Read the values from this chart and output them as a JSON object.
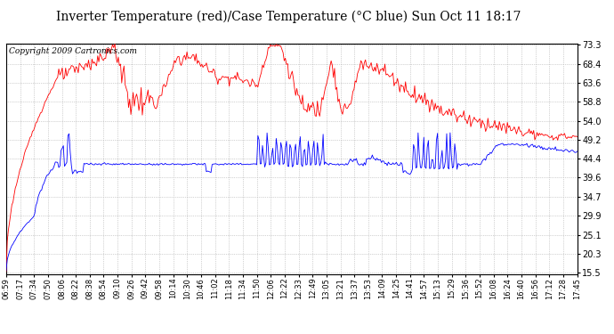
{
  "title": "Inverter Temperature (red)/Case Temperature (°C blue) Sun Oct 11 18:17",
  "copyright": "Copyright 2009 Cartronics.com",
  "y_ticks": [
    15.5,
    20.3,
    25.1,
    29.9,
    34.7,
    39.6,
    44.4,
    49.2,
    54.0,
    58.8,
    63.6,
    68.4,
    73.3
  ],
  "x_labels": [
    "06:59",
    "07:17",
    "07:34",
    "07:50",
    "08:06",
    "08:22",
    "08:38",
    "08:54",
    "09:10",
    "09:26",
    "09:42",
    "09:58",
    "10:14",
    "10:30",
    "10:46",
    "11:02",
    "11:18",
    "11:34",
    "11:50",
    "12:06",
    "12:22",
    "12:33",
    "12:49",
    "13:05",
    "13:21",
    "13:37",
    "13:53",
    "14:09",
    "14:25",
    "14:41",
    "14:57",
    "15:13",
    "15:29",
    "15:36",
    "15:52",
    "16:08",
    "16:24",
    "16:40",
    "16:56",
    "17:12",
    "17:28",
    "17:45"
  ],
  "bg_color": "#ffffff",
  "grid_color": "#aaaaaa",
  "title_fontsize": 10,
  "copyright_fontsize": 6.5,
  "tick_fontsize": 6,
  "ytick_fontsize": 7
}
